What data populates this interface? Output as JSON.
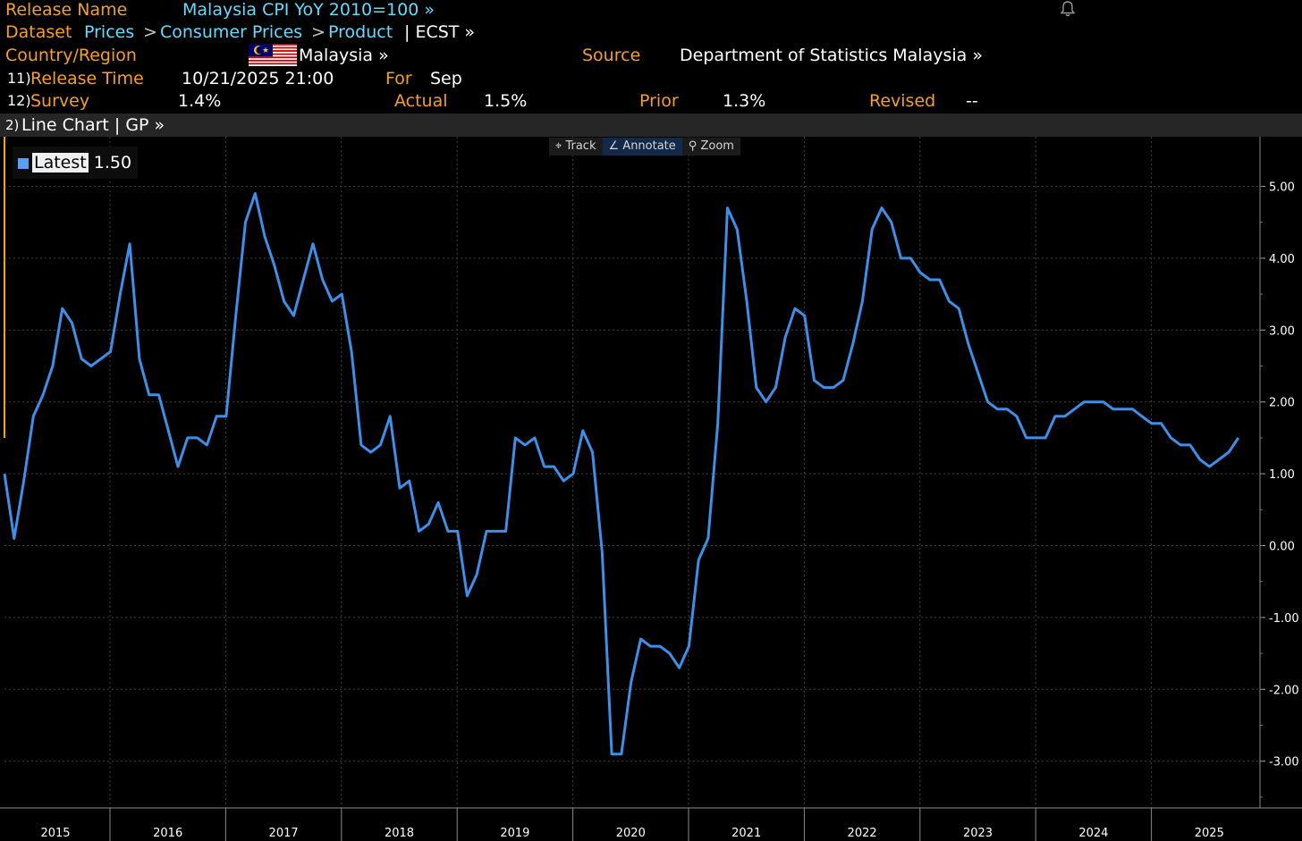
{
  "header": {
    "release_name_label": "Release Name",
    "release_name_value": "Malaysia CPI YoY 2010=100 »",
    "dataset_label": "Dataset",
    "dataset_path_1": "Prices",
    "dataset_path_2": "Consumer Prices",
    "dataset_path_3": "Product",
    "dataset_sep": ">",
    "dataset_ticker": "| ECST »",
    "country_label": "Country/Region",
    "country_value": "Malaysia »",
    "source_label": "Source",
    "source_value": "Department of Statistics Malaysia »",
    "release_time_num": "11)",
    "release_time_label": "Release Time",
    "release_time_value": "10/21/2025 21:00",
    "for_label": "For",
    "for_value": "Sep",
    "survey_num": "12)",
    "survey_label": "Survey",
    "survey_value": "1.4%",
    "actual_label": "Actual",
    "actual_value": "1.5%",
    "prior_label": "Prior",
    "prior_value": "1.3%",
    "revised_label": "Revised",
    "revised_value": "--",
    "bell_icon": "bell-icon"
  },
  "chart_header": {
    "num": "2)",
    "title": "Line Chart | GP »"
  },
  "toolbar": {
    "track": "Track",
    "annotate": "Annotate",
    "zoom": "Zoom"
  },
  "legend": {
    "label": "Latest",
    "value": "1.50"
  },
  "colors": {
    "background": "#000000",
    "line": "#3d8fe8",
    "orange_label": "#f39f2c",
    "cyan_link": "#66d9ff",
    "grid": "#3a3a3a"
  },
  "chart_data": {
    "type": "line",
    "title": "",
    "xlabel": "",
    "ylabel": "",
    "ylim": [
      -3.6,
      5.5
    ],
    "y_ticks": [
      5,
      4,
      3,
      2,
      1,
      0,
      -1,
      -2,
      -3
    ],
    "y_tick_labels": [
      "5.00",
      "4.00",
      "3.00",
      "2.00",
      "1.00",
      "0.00",
      "-1.00",
      "-2.00",
      "-3.00"
    ],
    "x_tick_labels": [
      "2015",
      "2016",
      "2017",
      "2018",
      "2019",
      "2020",
      "2021",
      "2022",
      "2023",
      "2024",
      "2025"
    ],
    "x_start": "2015-01",
    "grid": true,
    "legend": "top-left",
    "series": [
      {
        "name": "Latest",
        "values": [
          1.0,
          0.1,
          0.9,
          1.8,
          2.1,
          2.5,
          3.3,
          3.1,
          2.6,
          2.5,
          2.6,
          2.7,
          3.5,
          4.2,
          2.6,
          2.1,
          2.1,
          1.6,
          1.1,
          1.5,
          1.5,
          1.4,
          1.8,
          1.8,
          3.2,
          4.5,
          4.9,
          4.3,
          3.9,
          3.4,
          3.2,
          3.7,
          4.2,
          3.7,
          3.4,
          3.5,
          2.7,
          1.4,
          1.3,
          1.4,
          1.8,
          0.8,
          0.9,
          0.2,
          0.3,
          0.6,
          0.2,
          0.2,
          -0.7,
          -0.4,
          0.2,
          0.2,
          0.2,
          1.5,
          1.4,
          1.5,
          1.1,
          1.1,
          0.9,
          1.0,
          1.6,
          1.3,
          -0.1,
          -2.9,
          -2.9,
          -1.9,
          -1.3,
          -1.4,
          -1.4,
          -1.5,
          -1.7,
          -1.4,
          -0.2,
          0.1,
          1.7,
          4.7,
          4.4,
          3.4,
          2.2,
          2.0,
          2.2,
          2.9,
          3.3,
          3.2,
          2.3,
          2.2,
          2.2,
          2.3,
          2.8,
          3.4,
          4.4,
          4.7,
          4.5,
          4.0,
          4.0,
          3.8,
          3.7,
          3.7,
          3.4,
          3.3,
          2.8,
          2.4,
          2.0,
          1.9,
          1.9,
          1.8,
          1.5,
          1.5,
          1.5,
          1.8,
          1.8,
          1.9,
          2.0,
          2.0,
          2.0,
          1.9,
          1.9,
          1.9,
          1.8,
          1.7,
          1.7,
          1.5,
          1.4,
          1.4,
          1.2,
          1.1,
          1.2,
          1.3,
          1.5
        ]
      }
    ]
  }
}
